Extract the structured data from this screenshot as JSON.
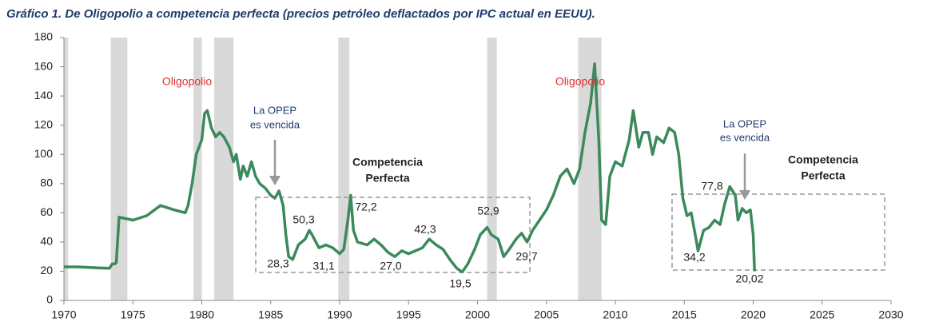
{
  "chart_data": {
    "type": "line",
    "title": "Gráfico 1. De Oligopolio a competencia perfecta (precios petróleo deflactados por IPC actual en EEUU).",
    "xlim": [
      1970,
      2030
    ],
    "xticks": [
      1970,
      1975,
      1980,
      1985,
      1990,
      1995,
      2000,
      2005,
      2010,
      2015,
      2020,
      2025,
      2030
    ],
    "ylim": [
      0,
      180
    ],
    "yticks": [
      0,
      20,
      40,
      60,
      80,
      100,
      120,
      140,
      160,
      180
    ],
    "grid": false,
    "recessions": [
      [
        1970,
        1970.3
      ],
      [
        1973.4,
        1974.6
      ],
      [
        1979.4,
        1980.0
      ],
      [
        1980.9,
        1982.3
      ],
      [
        1989.9,
        1990.7
      ],
      [
        2000.7,
        2001.4
      ],
      [
        2007.3,
        2009.0
      ]
    ],
    "recession_color": "#d9d9d9",
    "series": [
      {
        "color": "#3a8a5c",
        "x": [
          1970,
          1971,
          1972,
          1973.3,
          1973.5,
          1973.7,
          1973.8,
          1974,
          1975,
          1976,
          1977,
          1978,
          1978.8,
          1979,
          1979.3,
          1979.6,
          1980,
          1980.2,
          1980.4,
          1980.7,
          1981,
          1981.3,
          1981.6,
          1982,
          1982.3,
          1982.5,
          1982.8,
          1983,
          1983.3,
          1983.6,
          1983.9,
          1984.2,
          1984.6,
          1985,
          1985.3,
          1985.6,
          1985.9,
          1986.1,
          1986.3,
          1986.6,
          1987,
          1987.5,
          1987.8,
          1988,
          1988.5,
          1989,
          1989.5,
          1990,
          1990.3,
          1990.6,
          1990.8,
          1991,
          1991.3,
          1992,
          1992.5,
          1993,
          1993.5,
          1994,
          1994.5,
          1995,
          1995.5,
          1996,
          1996.5,
          1997,
          1997.5,
          1998,
          1998.5,
          1998.9,
          1999.3,
          1999.8,
          2000.2,
          2000.7,
          2001,
          2001.5,
          2001.9,
          2002.3,
          2002.8,
          2003.2,
          2003.6,
          2004,
          2004.5,
          2005,
          2005.5,
          2006,
          2006.5,
          2007,
          2007.4,
          2007.8,
          2008.2,
          2008.5,
          2008.8,
          2009,
          2009.3,
          2009.6,
          2010,
          2010.5,
          2011,
          2011.3,
          2011.7,
          2012,
          2012.4,
          2012.7,
          2013,
          2013.5,
          2013.9,
          2014.3,
          2014.6,
          2014.9,
          2015.2,
          2015.5,
          2015.8,
          2016,
          2016.4,
          2016.8,
          2017.2,
          2017.6,
          2017.9,
          2018.3,
          2018.7,
          2018.9,
          2019.2,
          2019.5,
          2019.8,
          2020.0,
          2020.1
        ],
        "values": [
          23,
          23,
          22.5,
          22,
          25,
          25,
          26,
          57,
          55,
          58,
          65,
          62,
          60,
          65,
          80,
          100,
          110,
          128,
          130,
          118,
          112,
          115,
          112,
          105,
          95,
          100,
          83,
          92,
          85,
          95,
          85,
          80,
          77,
          72,
          70,
          75,
          65,
          45,
          30,
          28,
          38,
          42,
          48,
          45,
          36,
          38,
          36,
          32,
          35,
          55,
          72,
          48,
          40,
          38,
          42,
          38,
          33,
          30,
          34,
          32,
          34,
          36,
          42,
          38,
          35,
          28,
          22,
          19.5,
          25,
          35,
          45,
          50,
          45,
          42,
          30,
          35,
          42,
          46,
          40,
          48,
          55,
          62,
          72,
          85,
          90,
          80,
          90,
          115,
          135,
          162,
          110,
          55,
          52,
          85,
          95,
          92,
          110,
          130,
          105,
          115,
          115,
          100,
          112,
          108,
          118,
          115,
          100,
          70,
          58,
          60,
          45,
          34,
          48,
          50,
          55,
          52,
          65,
          78,
          72,
          55,
          63,
          60,
          62,
          45,
          20
        ]
      }
    ],
    "annotations": [
      "Oligopolio",
      "Oligopolio",
      "La OPEP",
      "es vencida",
      "La OPEP",
      "es vencida",
      "Competencia",
      "Perfecta",
      "Competencia",
      "Perfecta"
    ],
    "point_labels": [
      {
        "value": 28.3,
        "label": "28,3"
      },
      {
        "value": 50.3,
        "label": "50,3"
      },
      {
        "value": 31.1,
        "label": "31,1"
      },
      {
        "value": 72.2,
        "label": "72,2"
      },
      {
        "value": 27.0,
        "label": "27,0"
      },
      {
        "value": 42.3,
        "label": "42,3"
      },
      {
        "value": 19.5,
        "label": "19,5"
      },
      {
        "value": 52.9,
        "label": "52,9"
      },
      {
        "value": 29.7,
        "label": "29,7"
      },
      {
        "value": 77.8,
        "label": "77,8"
      },
      {
        "value": 34.2,
        "label": "34,2"
      },
      {
        "value": 20.02,
        "label": "20,02"
      }
    ]
  }
}
